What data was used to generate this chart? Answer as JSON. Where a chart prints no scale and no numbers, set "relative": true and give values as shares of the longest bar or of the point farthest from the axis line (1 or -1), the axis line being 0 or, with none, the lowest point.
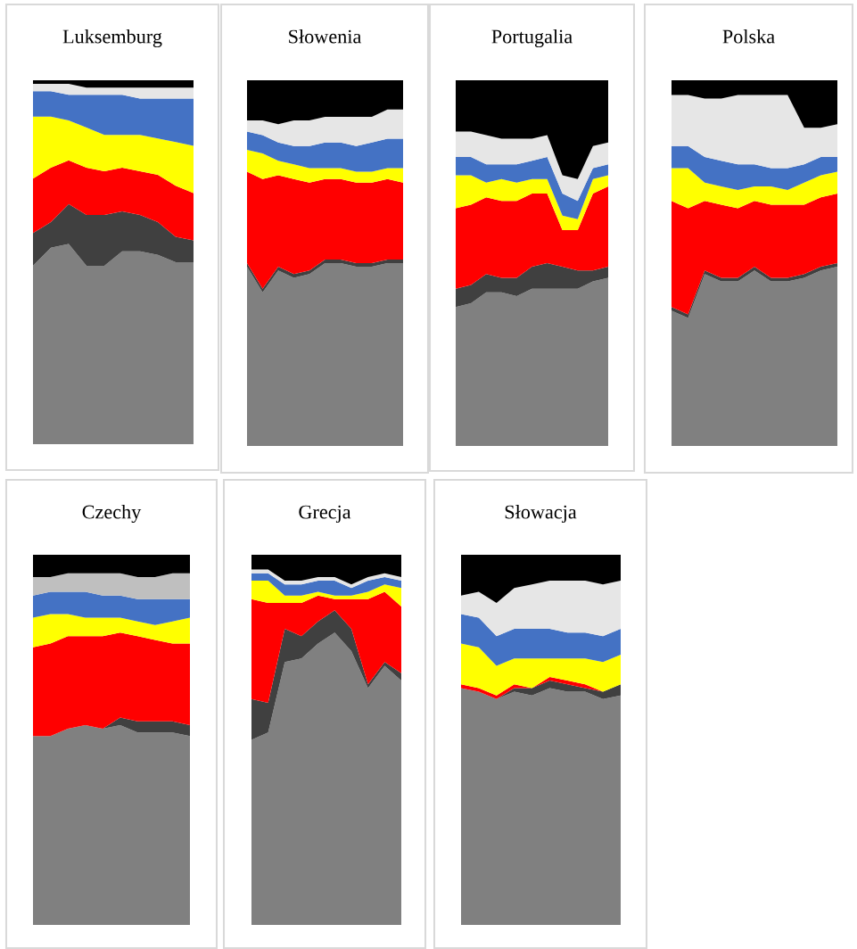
{
  "chart_data": [
    {
      "type": "area",
      "stacked": true,
      "relative": true,
      "title": "Luksemburg",
      "categories": [
        null,
        null,
        null,
        null,
        null,
        null,
        null,
        null,
        null,
        null
      ],
      "series": [
        {
          "color": "#808080",
          "values": [
            0.49,
            0.54,
            0.55,
            0.49,
            0.49,
            0.53,
            0.53,
            0.52,
            0.5,
            0.5
          ]
        },
        {
          "color": "#404040",
          "values": [
            0.09,
            0.07,
            0.11,
            0.14,
            0.14,
            0.11,
            0.1,
            0.09,
            0.07,
            0.06
          ]
        },
        {
          "color": "#ff0000",
          "values": [
            0.15,
            0.15,
            0.12,
            0.13,
            0.12,
            0.12,
            0.12,
            0.13,
            0.14,
            0.13
          ]
        },
        {
          "color": "#ffff00",
          "values": [
            0.17,
            0.14,
            0.11,
            0.11,
            0.1,
            0.09,
            0.1,
            0.1,
            0.12,
            0.13
          ]
        },
        {
          "color": "#4472c4",
          "values": [
            0.07,
            0.07,
            0.07,
            0.09,
            0.11,
            0.11,
            0.1,
            0.11,
            0.12,
            0.13
          ]
        },
        {
          "color": "#e6e6e6",
          "values": [
            0.02,
            0.02,
            0.03,
            0.02,
            0.02,
            0.02,
            0.03,
            0.03,
            0.03,
            0.03
          ]
        },
        {
          "color": "#000000",
          "values": [
            0.01,
            0.01,
            0.01,
            0.02,
            0.02,
            0.02,
            0.02,
            0.02,
            0.02,
            0.02
          ]
        }
      ]
    },
    {
      "type": "area",
      "stacked": true,
      "relative": true,
      "title": "Słowenia",
      "categories": [
        null,
        null,
        null,
        null,
        null,
        null,
        null,
        null,
        null,
        null,
        null
      ],
      "series": [
        {
          "color": "#808080",
          "values": [
            0.49,
            0.42,
            0.48,
            0.46,
            0.47,
            0.5,
            0.5,
            0.49,
            0.49,
            0.5,
            0.5
          ]
        },
        {
          "color": "#404040",
          "values": [
            0.01,
            0.01,
            0.01,
            0.01,
            0.01,
            0.01,
            0.01,
            0.01,
            0.01,
            0.01,
            0.01
          ]
        },
        {
          "color": "#ff0000",
          "values": [
            0.25,
            0.3,
            0.25,
            0.26,
            0.24,
            0.22,
            0.22,
            0.22,
            0.22,
            0.22,
            0.21
          ]
        },
        {
          "color": "#ffff00",
          "values": [
            0.06,
            0.07,
            0.04,
            0.04,
            0.04,
            0.03,
            0.03,
            0.03,
            0.03,
            0.03,
            0.04
          ]
        },
        {
          "color": "#4472c4",
          "values": [
            0.05,
            0.05,
            0.05,
            0.05,
            0.06,
            0.07,
            0.07,
            0.07,
            0.08,
            0.08,
            0.08
          ]
        },
        {
          "color": "#e6e6e6",
          "values": [
            0.03,
            0.04,
            0.05,
            0.07,
            0.07,
            0.07,
            0.07,
            0.08,
            0.07,
            0.08,
            0.08
          ]
        },
        {
          "color": "#000000",
          "values": [
            0.11,
            0.11,
            0.12,
            0.11,
            0.11,
            0.1,
            0.1,
            0.1,
            0.1,
            0.08,
            0.08
          ]
        }
      ]
    },
    {
      "type": "area",
      "stacked": true,
      "relative": true,
      "title": "Portugalia",
      "categories": [
        null,
        null,
        null,
        null,
        null,
        null,
        null,
        null,
        null,
        null,
        null
      ],
      "series": [
        {
          "color": "#808080",
          "values": [
            0.38,
            0.39,
            0.42,
            0.42,
            0.41,
            0.43,
            0.43,
            0.43,
            0.43,
            0.45,
            0.46
          ]
        },
        {
          "color": "#404040",
          "values": [
            0.05,
            0.05,
            0.05,
            0.04,
            0.05,
            0.06,
            0.07,
            0.06,
            0.05,
            0.03,
            0.03
          ]
        },
        {
          "color": "#ff0000",
          "values": [
            0.22,
            0.22,
            0.21,
            0.21,
            0.21,
            0.2,
            0.19,
            0.1,
            0.11,
            0.21,
            0.22
          ]
        },
        {
          "color": "#ffff00",
          "values": [
            0.09,
            0.08,
            0.04,
            0.06,
            0.05,
            0.04,
            0.04,
            0.04,
            0.03,
            0.04,
            0.03
          ]
        },
        {
          "color": "#4472c4",
          "values": [
            0.05,
            0.05,
            0.05,
            0.04,
            0.05,
            0.05,
            0.06,
            0.06,
            0.05,
            0.03,
            0.03
          ]
        },
        {
          "color": "#e6e6e6",
          "values": [
            0.07,
            0.07,
            0.08,
            0.07,
            0.07,
            0.06,
            0.06,
            0.05,
            0.06,
            0.06,
            0.06
          ]
        },
        {
          "color": "#000000",
          "values": [
            0.14,
            0.14,
            0.15,
            0.16,
            0.16,
            0.16,
            0.15,
            0.26,
            0.27,
            0.18,
            0.17
          ]
        }
      ]
    },
    {
      "type": "area",
      "stacked": true,
      "relative": true,
      "title": "Polska",
      "categories": [
        null,
        null,
        null,
        null,
        null,
        null,
        null,
        null,
        null,
        null,
        null
      ],
      "series": [
        {
          "color": "#808080",
          "values": [
            0.37,
            0.35,
            0.47,
            0.45,
            0.45,
            0.48,
            0.45,
            0.45,
            0.46,
            0.48,
            0.49
          ]
        },
        {
          "color": "#404040",
          "values": [
            0.01,
            0.01,
            0.01,
            0.01,
            0.01,
            0.01,
            0.01,
            0.01,
            0.01,
            0.01,
            0.01
          ]
        },
        {
          "color": "#ff0000",
          "values": [
            0.29,
            0.29,
            0.19,
            0.2,
            0.19,
            0.18,
            0.2,
            0.2,
            0.19,
            0.19,
            0.19
          ]
        },
        {
          "color": "#ffff00",
          "values": [
            0.09,
            0.11,
            0.05,
            0.05,
            0.05,
            0.04,
            0.05,
            0.04,
            0.06,
            0.06,
            0.06
          ]
        },
        {
          "color": "#4472c4",
          "values": [
            0.06,
            0.06,
            0.07,
            0.07,
            0.07,
            0.06,
            0.05,
            0.06,
            0.05,
            0.05,
            0.04
          ]
        },
        {
          "color": "#e6e6e6",
          "values": [
            0.14,
            0.14,
            0.16,
            0.17,
            0.19,
            0.19,
            0.2,
            0.2,
            0.1,
            0.08,
            0.09
          ]
        },
        {
          "color": "#000000",
          "values": [
            0.04,
            0.04,
            0.05,
            0.05,
            0.04,
            0.04,
            0.04,
            0.04,
            0.13,
            0.13,
            0.12
          ]
        }
      ]
    },
    {
      "type": "area",
      "stacked": true,
      "relative": true,
      "title": "Czechy",
      "categories": [
        null,
        null,
        null,
        null,
        null,
        null,
        null,
        null,
        null,
        null
      ],
      "series": [
        {
          "color": "#808080",
          "values": [
            0.51,
            0.51,
            0.53,
            0.54,
            0.53,
            0.54,
            0.52,
            0.52,
            0.52,
            0.51
          ]
        },
        {
          "color": "#404040",
          "values": [
            0.0,
            0.0,
            0.0,
            0.0,
            0.0,
            0.02,
            0.03,
            0.03,
            0.03,
            0.03
          ]
        },
        {
          "color": "#ff0000",
          "values": [
            0.24,
            0.25,
            0.25,
            0.24,
            0.25,
            0.23,
            0.23,
            0.22,
            0.21,
            0.22
          ]
        },
        {
          "color": "#ffff00",
          "values": [
            0.08,
            0.08,
            0.06,
            0.05,
            0.05,
            0.04,
            0.04,
            0.04,
            0.06,
            0.07
          ]
        },
        {
          "color": "#4472c4",
          "values": [
            0.06,
            0.06,
            0.06,
            0.07,
            0.06,
            0.06,
            0.06,
            0.07,
            0.06,
            0.05
          ]
        },
        {
          "color": "#bfbfbf",
          "values": [
            0.05,
            0.04,
            0.05,
            0.05,
            0.06,
            0.06,
            0.06,
            0.06,
            0.07,
            0.07
          ]
        },
        {
          "color": "#000000",
          "values": [
            0.06,
            0.06,
            0.05,
            0.05,
            0.05,
            0.05,
            0.06,
            0.06,
            0.05,
            0.05
          ]
        }
      ]
    },
    {
      "type": "area",
      "stacked": true,
      "relative": true,
      "title": "Grecja",
      "categories": [
        null,
        null,
        null,
        null,
        null,
        null,
        null,
        null,
        null,
        null
      ],
      "series": [
        {
          "color": "#808080",
          "values": [
            0.5,
            0.52,
            0.71,
            0.72,
            0.76,
            0.79,
            0.74,
            0.64,
            0.7,
            0.66
          ]
        },
        {
          "color": "#404040",
          "values": [
            0.11,
            0.08,
            0.09,
            0.06,
            0.06,
            0.06,
            0.06,
            0.01,
            0.01,
            0.02
          ]
        },
        {
          "color": "#ff0000",
          "values": [
            0.27,
            0.27,
            0.07,
            0.09,
            0.07,
            0.03,
            0.08,
            0.23,
            0.19,
            0.18
          ]
        },
        {
          "color": "#ffff00",
          "values": [
            0.05,
            0.06,
            0.02,
            0.02,
            0.01,
            0.01,
            0.01,
            0.02,
            0.02,
            0.05
          ]
        },
        {
          "color": "#4472c4",
          "values": [
            0.02,
            0.02,
            0.03,
            0.03,
            0.03,
            0.04,
            0.02,
            0.03,
            0.02,
            0.02
          ]
        },
        {
          "color": "#e6e6e6",
          "values": [
            0.01,
            0.01,
            0.01,
            0.01,
            0.01,
            0.01,
            0.01,
            0.01,
            0.01,
            0.01
          ]
        },
        {
          "color": "#000000",
          "values": [
            0.04,
            0.04,
            0.07,
            0.07,
            0.06,
            0.06,
            0.08,
            0.06,
            0.05,
            0.06
          ]
        }
      ]
    },
    {
      "type": "area",
      "stacked": true,
      "relative": true,
      "title": "Słowacja",
      "categories": [
        null,
        null,
        null,
        null,
        null,
        null,
        null,
        null,
        null,
        null
      ],
      "series": [
        {
          "color": "#808080",
          "values": [
            0.64,
            0.63,
            0.61,
            0.63,
            0.62,
            0.64,
            0.63,
            0.63,
            0.61,
            0.62
          ]
        },
        {
          "color": "#404040",
          "values": [
            0.0,
            0.0,
            0.0,
            0.01,
            0.02,
            0.02,
            0.02,
            0.01,
            0.02,
            0.03
          ]
        },
        {
          "color": "#ff0000",
          "values": [
            0.01,
            0.01,
            0.01,
            0.01,
            0.0,
            0.01,
            0.01,
            0.01,
            0.0,
            0.0
          ]
        },
        {
          "color": "#ffff00",
          "values": [
            0.11,
            0.11,
            0.08,
            0.07,
            0.08,
            0.05,
            0.06,
            0.07,
            0.08,
            0.08
          ]
        },
        {
          "color": "#4472c4",
          "values": [
            0.08,
            0.08,
            0.08,
            0.08,
            0.08,
            0.08,
            0.07,
            0.07,
            0.07,
            0.07
          ]
        },
        {
          "color": "#e6e6e6",
          "values": [
            0.05,
            0.07,
            0.09,
            0.11,
            0.12,
            0.13,
            0.14,
            0.14,
            0.14,
            0.13
          ]
        },
        {
          "color": "#000000",
          "values": [
            0.11,
            0.1,
            0.13,
            0.09,
            0.08,
            0.07,
            0.07,
            0.07,
            0.08,
            0.07
          ]
        }
      ]
    }
  ]
}
